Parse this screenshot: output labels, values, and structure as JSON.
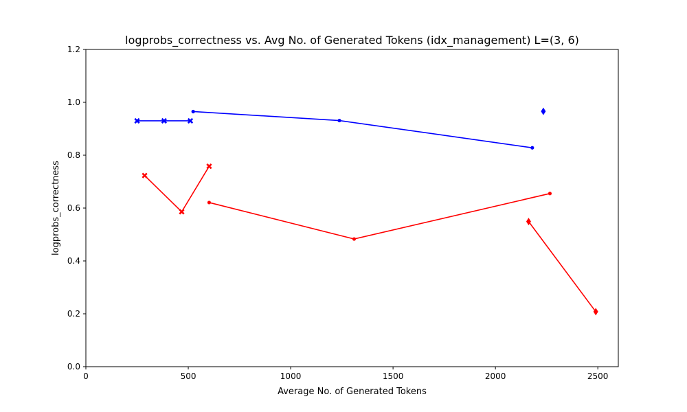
{
  "chart_data": {
    "type": "line",
    "title": "logprobs_correctness vs. Avg No. of Generated Tokens (idx_management) L=(3, 6)",
    "xlabel": "Average No. of Generated Tokens",
    "ylabel": "logprobs_correctness",
    "xlim": [
      0,
      2600
    ],
    "ylim": [
      0.0,
      1.2
    ],
    "xticks": [
      0,
      500,
      1000,
      1500,
      2000,
      2500
    ],
    "xtick_labels": [
      "0",
      "500",
      "1000",
      "1500",
      "2000",
      "2500"
    ],
    "yticks": [
      0.0,
      0.2,
      0.4,
      0.6,
      0.8,
      1.0,
      1.2
    ],
    "ytick_labels": [
      "0.0",
      "0.2",
      "0.4",
      "0.6",
      "0.8",
      "1.0",
      "1.2"
    ],
    "grid": false,
    "legend": "none",
    "series": [
      {
        "color": "#0000ff",
        "marker": "x",
        "points": [
          [
            250,
            0.93
          ],
          [
            382,
            0.93
          ],
          [
            510,
            0.93
          ]
        ]
      },
      {
        "color": "#0000ff",
        "marker": "dot",
        "points": [
          [
            524,
            0.965
          ],
          [
            1238,
            0.931
          ],
          [
            2180,
            0.828
          ]
        ]
      },
      {
        "color": "#0000ff",
        "marker": "diamond",
        "points": [
          [
            2234,
            0.966
          ]
        ]
      },
      {
        "color": "#ff0000",
        "marker": "x",
        "points": [
          [
            287,
            0.723
          ],
          [
            468,
            0.586
          ],
          [
            602,
            0.758
          ]
        ]
      },
      {
        "color": "#ff0000",
        "marker": "dot",
        "points": [
          [
            602,
            0.621
          ],
          [
            1310,
            0.483
          ],
          [
            2266,
            0.655
          ]
        ]
      },
      {
        "color": "#ff0000",
        "marker": "diamond",
        "points": [
          [
            2162,
            0.549
          ],
          [
            2490,
            0.208
          ]
        ]
      }
    ]
  }
}
